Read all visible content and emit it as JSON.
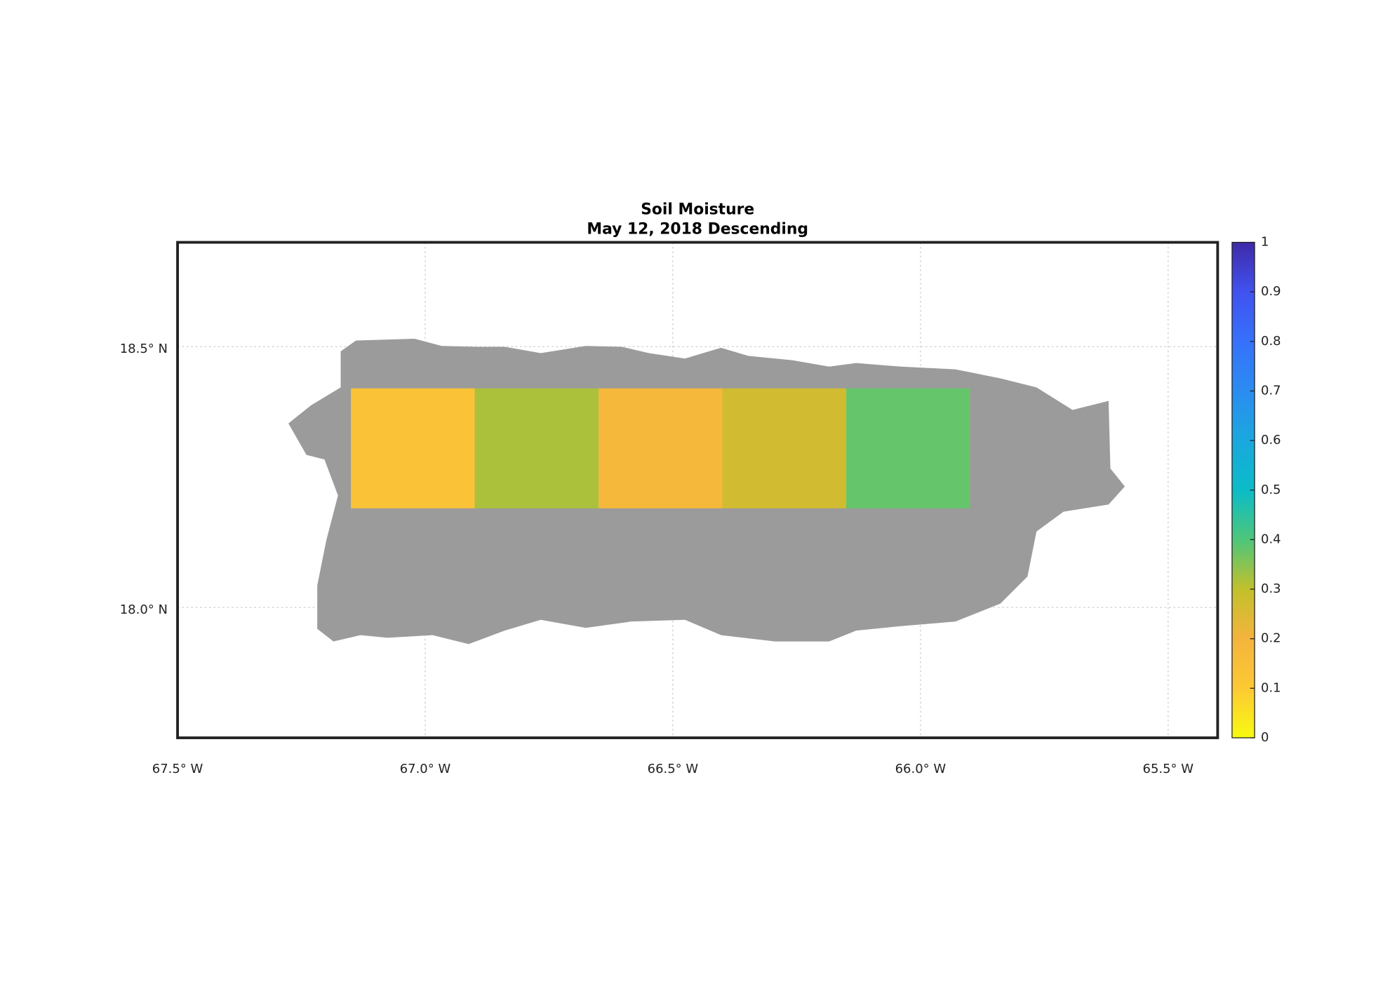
{
  "chart_data": {
    "type": "gridmap",
    "title": "Soil Moisture",
    "subtitle": "May 12, 2018 Descending",
    "xlim": [
      -67.5,
      -65.4
    ],
    "ylim": [
      17.75,
      18.7
    ],
    "xticks": [
      {
        "value": -67.5,
        "label": "67.5° W"
      },
      {
        "value": -67.0,
        "label": "67.0° W"
      },
      {
        "value": -66.5,
        "label": "66.5° W"
      },
      {
        "value": -66.0,
        "label": "66.0° W"
      },
      {
        "value": -65.5,
        "label": "65.5° W"
      }
    ],
    "yticks": [
      {
        "value": 18.0,
        "label": "18.0° N"
      },
      {
        "value": 18.5,
        "label": "18.5° N"
      }
    ],
    "grid": true,
    "land_color": "#9b9b9b",
    "cells": [
      {
        "lon": [
          -67.15,
          -66.9
        ],
        "lat": [
          18.19,
          18.42
        ],
        "value": 0.13
      },
      {
        "lon": [
          -66.9,
          -66.65
        ],
        "lat": [
          18.19,
          18.42
        ],
        "value": 0.32
      },
      {
        "lon": [
          -66.65,
          -66.4
        ],
        "lat": [
          18.19,
          18.42
        ],
        "value": 0.18
      },
      {
        "lon": [
          -66.4,
          -66.15
        ],
        "lat": [
          18.19,
          18.42
        ],
        "value": 0.27
      },
      {
        "lon": [
          -66.15,
          -65.9
        ],
        "lat": [
          18.19,
          18.42
        ],
        "value": 0.38
      }
    ],
    "colorbar": {
      "lim": [
        0,
        1
      ],
      "ticks": [
        0,
        0.1,
        0.2,
        0.3,
        0.4,
        0.5,
        0.6,
        0.7,
        0.8,
        0.9,
        1
      ],
      "colormap": [
        "#f8fa10",
        "#fcc934",
        "#f4b43d",
        "#c2c02c",
        "#4ec67a",
        "#0bbcc8",
        "#1aa8de",
        "#2b8cf0",
        "#3671fb",
        "#4152ef",
        "#3f2aa8"
      ]
    }
  }
}
